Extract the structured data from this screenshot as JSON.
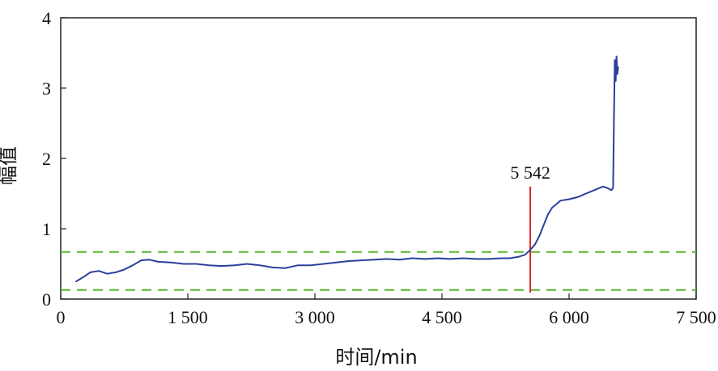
{
  "chart_data": {
    "type": "line",
    "title": "",
    "xlabel": "时间/min",
    "ylabel": "幅值",
    "xlim": [
      0,
      7500
    ],
    "ylim": [
      0,
      4
    ],
    "xticks": [
      {
        "value": 0,
        "label": "0"
      },
      {
        "value": 1500,
        "label": "1 500"
      },
      {
        "value": 3000,
        "label": "3 000"
      },
      {
        "value": 4500,
        "label": "4 500"
      },
      {
        "value": 6000,
        "label": "6 000"
      },
      {
        "value": 7500,
        "label": "7 500"
      }
    ],
    "yticks": [
      {
        "value": 0,
        "label": "0"
      },
      {
        "value": 1,
        "label": "1"
      },
      {
        "value": 2,
        "label": "2"
      },
      {
        "value": 3,
        "label": "3"
      },
      {
        "value": 4,
        "label": "4"
      }
    ],
    "grid": false,
    "series": [
      {
        "color": "#2b3f9c",
        "x": [
          180,
          250,
          350,
          450,
          550,
          650,
          750,
          850,
          950,
          1050,
          1150,
          1300,
          1450,
          1600,
          1750,
          1900,
          2050,
          2200,
          2350,
          2500,
          2650,
          2800,
          2950,
          3100,
          3250,
          3400,
          3550,
          3700,
          3850,
          4000,
          4150,
          4300,
          4450,
          4600,
          4750,
          4900,
          5050,
          5200,
          5300,
          5400,
          5480,
          5542,
          5600,
          5650,
          5700,
          5750,
          5800,
          5850,
          5900,
          6000,
          6100,
          6200,
          6300,
          6400,
          6450,
          6500,
          6520,
          6530,
          6540,
          6550,
          6560,
          6570,
          6580
        ],
        "values": [
          0.25,
          0.3,
          0.38,
          0.4,
          0.36,
          0.38,
          0.42,
          0.48,
          0.55,
          0.56,
          0.53,
          0.52,
          0.5,
          0.5,
          0.48,
          0.47,
          0.48,
          0.5,
          0.48,
          0.45,
          0.44,
          0.48,
          0.48,
          0.5,
          0.52,
          0.54,
          0.55,
          0.56,
          0.57,
          0.56,
          0.58,
          0.57,
          0.58,
          0.57,
          0.58,
          0.57,
          0.57,
          0.58,
          0.58,
          0.6,
          0.63,
          0.7,
          0.78,
          0.9,
          1.05,
          1.2,
          1.3,
          1.35,
          1.4,
          1.42,
          1.45,
          1.5,
          1.55,
          1.6,
          1.58,
          1.55,
          1.58,
          2.6,
          3.4,
          3.1,
          3.45,
          3.2,
          3.3
        ]
      }
    ],
    "reference_lines": [
      {
        "orientation": "horizontal",
        "value": 0.67,
        "style": "dashed",
        "color": "#5cb531"
      },
      {
        "orientation": "horizontal",
        "value": 0.13,
        "style": "dashed",
        "color": "#5cb531"
      },
      {
        "orientation": "vertical",
        "value": 5542,
        "style": "solid",
        "color": "#d9262b",
        "label": "5 542"
      }
    ]
  }
}
